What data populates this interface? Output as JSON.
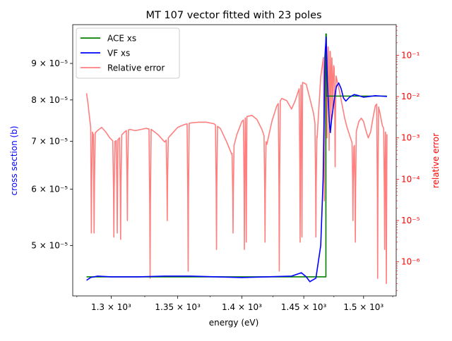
{
  "chart_data": {
    "type": "line",
    "title": "MT 107 vector fitted with 23 poles",
    "xlabel": "energy (eV)",
    "ylabel_left": "cross section (b)",
    "ylabel_right": "relative error",
    "x_scale": "log",
    "y_left_scale": "log",
    "y_right_scale": "log",
    "xlim": [
      1272,
      1528
    ],
    "ylim_left": [
      4.25e-05,
      0.000102
    ],
    "ylim_right": [
      1.5e-07,
      0.55
    ],
    "legend_position": "top-left",
    "x_ticks": [
      {
        "value": 1300,
        "label": "1.3 × 10³"
      },
      {
        "value": 1350,
        "label": "1.35 × 10³"
      },
      {
        "value": 1400,
        "label": "1.4 × 10³"
      },
      {
        "value": 1450,
        "label": "1.45 × 10³"
      },
      {
        "value": 1500,
        "label": "1.5 × 10³"
      }
    ],
    "y_left_ticks": [
      {
        "value": 5e-05,
        "label": "5 × 10⁻⁵"
      },
      {
        "value": 6e-05,
        "label": "6 × 10⁻⁵"
      },
      {
        "value": 7e-05,
        "label": "7 × 10⁻⁵"
      },
      {
        "value": 8e-05,
        "label": "8 × 10⁻⁵"
      },
      {
        "value": 9e-05,
        "label": "9 × 10⁻⁵"
      }
    ],
    "y_right_ticks": [
      {
        "value": 1e-06,
        "label": "10⁻⁶"
      },
      {
        "value": 1e-05,
        "label": "10⁻⁵"
      },
      {
        "value": 0.0001,
        "label": "10⁻⁴"
      },
      {
        "value": 0.001,
        "label": "10⁻³"
      },
      {
        "value": 0.01,
        "label": "10⁻²"
      },
      {
        "value": 0.1,
        "label": "10⁻¹"
      }
    ],
    "series": [
      {
        "name": "ACE xs",
        "color": "#008000",
        "axis": "left",
        "x": [
          1282,
          1468.3,
          1468.3,
          1468.6,
          1468.6,
          1520
        ],
        "y": [
          4.52e-05,
          4.52e-05,
          9.9e-05,
          9.9e-05,
          8.1e-05,
          8.1e-05
        ]
      },
      {
        "name": "VF xs",
        "color": "#0000ff",
        "axis": "left",
        "x": [
          1282,
          1285,
          1290,
          1300,
          1320,
          1340,
          1360,
          1380,
          1400,
          1420,
          1440,
          1448,
          1452,
          1455,
          1460,
          1464,
          1466,
          1467.5,
          1468.5,
          1469.5,
          1470.2,
          1471,
          1472,
          1473,
          1475,
          1477,
          1479,
          1481,
          1483,
          1485,
          1488,
          1492,
          1496,
          1500,
          1505,
          1510,
          1515,
          1520
        ],
        "y": [
          4.47e-05,
          4.51e-05,
          4.53e-05,
          4.52e-05,
          4.52e-05,
          4.53e-05,
          4.53e-05,
          4.52e-05,
          4.51e-05,
          4.52e-05,
          4.53e-05,
          4.58e-05,
          4.52e-05,
          4.45e-05,
          4.5e-05,
          5e-05,
          6.2e-05,
          9.2e-05,
          9.8e-05,
          8.5e-05,
          8e-05,
          7.5e-05,
          7.2e-05,
          7.5e-05,
          7.95e-05,
          8.35e-05,
          8.45e-05,
          8.3e-05,
          8.05e-05,
          7.97e-05,
          8.07e-05,
          8.14e-05,
          8.11e-05,
          8.07e-05,
          8.09e-05,
          8.11e-05,
          8.1e-05,
          8.09e-05
        ]
      },
      {
        "name": "Relative error",
        "color": "#ff7f7f",
        "axis": "right",
        "envelope": {
          "x": [
            1282,
            1283,
            1284,
            1285,
            1287,
            1290,
            1293,
            1296,
            1299,
            1302,
            1305,
            1308,
            1311,
            1314,
            1318,
            1322,
            1326,
            1330,
            1335,
            1340,
            1345,
            1350,
            1355,
            1360,
            1366,
            1372,
            1378,
            1383,
            1388,
            1392,
            1396,
            1400,
            1404,
            1408,
            1412,
            1416,
            1420,
            1424,
            1428,
            1432,
            1436,
            1440,
            1443,
            1446,
            1449,
            1452,
            1455,
            1458,
            1461,
            1464,
            1467,
            1468.5,
            1470,
            1472,
            1474,
            1476,
            1478,
            1480,
            1482,
            1484,
            1486,
            1488,
            1490,
            1492,
            1494,
            1496,
            1498,
            1500,
            1502,
            1504,
            1506,
            1508,
            1510,
            1512,
            1514,
            1516,
            1518,
            1520
          ],
          "y": [
            0.012,
            0.007,
            0.0035,
            0.0018,
            0.0012,
            0.0015,
            0.0018,
            0.0014,
            0.001,
            0.0008,
            0.0009,
            0.0012,
            0.0015,
            0.0016,
            0.0015,
            0.0016,
            0.0017,
            0.0016,
            0.0012,
            0.0008,
            0.0012,
            0.0018,
            0.0021,
            0.0023,
            0.0024,
            0.0024,
            0.0022,
            0.0017,
            0.0008,
            0.0004,
            0.0012,
            0.0025,
            0.0033,
            0.0035,
            0.0028,
            0.0016,
            0.0007,
            0.0025,
            0.006,
            0.009,
            0.008,
            0.005,
            0.008,
            0.015,
            0.022,
            0.02,
            0.009,
            0.004,
            0.001,
            0.03,
            0.13,
            0.18,
            0.16,
            0.12,
            0.07,
            0.04,
            0.022,
            0.012,
            0.006,
            0.003,
            0.0018,
            0.0012,
            0.0008,
            0.0006,
            0.0015,
            0.0025,
            0.003,
            0.0025,
            0.0015,
            0.001,
            0.0014,
            0.003,
            0.006,
            0.007,
            0.004,
            0.002,
            0.0015,
            0.0012
          ]
        },
        "dips": [
          {
            "x": 1285.5,
            "y": 5e-06
          },
          {
            "x": 1287.5,
            "y": 5e-06
          },
          {
            "x": 1302,
            "y": 4e-06
          },
          {
            "x": 1304.5,
            "y": 5e-06
          },
          {
            "x": 1307,
            "y": 3.5e-06
          },
          {
            "x": 1312,
            "y": 1e-05
          },
          {
            "x": 1329,
            "y": 4e-07
          },
          {
            "x": 1342,
            "y": 1e-05
          },
          {
            "x": 1358,
            "y": 6e-07
          },
          {
            "x": 1380,
            "y": 2e-06
          },
          {
            "x": 1393,
            "y": 5e-06
          },
          {
            "x": 1402,
            "y": 2e-06
          },
          {
            "x": 1403.5,
            "y": 3e-06
          },
          {
            "x": 1418.5,
            "y": 3e-06
          },
          {
            "x": 1430,
            "y": 6e-07
          },
          {
            "x": 1447,
            "y": 3e-06
          },
          {
            "x": 1448.5,
            "y": 4e-06
          },
          {
            "x": 1460,
            "y": 4e-06
          },
          {
            "x": 1467,
            "y": 3e-05
          },
          {
            "x": 1469.2,
            "y": 0.001
          },
          {
            "x": 1471,
            "y": 0.0005
          },
          {
            "x": 1472.5,
            "y": 0.002
          },
          {
            "x": 1474,
            "y": 0.005
          },
          {
            "x": 1476,
            "y": 0.0002
          },
          {
            "x": 1491,
            "y": 1e-05
          },
          {
            "x": 1493,
            "y": 3e-06
          },
          {
            "x": 1512,
            "y": 4e-07
          },
          {
            "x": 1518,
            "y": 2e-06
          },
          {
            "x": 1519.5,
            "y": 3e-07
          }
        ]
      }
    ]
  }
}
